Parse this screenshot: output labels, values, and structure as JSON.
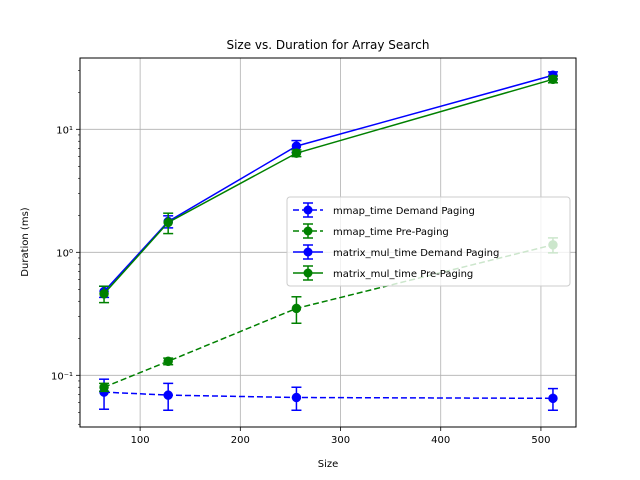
{
  "chart_data": {
    "type": "line",
    "title": "Size vs. Duration for Array Search",
    "xlabel": "Size",
    "ylabel": "Duration (ms)",
    "xscale": "linear",
    "yscale": "log",
    "xlim": [
      40,
      535
    ],
    "ylim": [
      0.038,
      38
    ],
    "xticks": [
      100,
      200,
      300,
      400,
      500
    ],
    "xtick_labels": [
      "100",
      "200",
      "300",
      "400",
      "500"
    ],
    "yticks": [
      0.1,
      1,
      10
    ],
    "ytick_labels": [
      "10⁻¹",
      "10⁰",
      "10¹"
    ],
    "grid": true,
    "legend_position": "center-right",
    "x": [
      64,
      128,
      256,
      512
    ],
    "series": [
      {
        "name": "mmap_time Demand Paging",
        "color": "#0000ff",
        "linestyle": "dashed",
        "values": [
          0.073,
          0.069,
          0.066,
          0.065
        ],
        "errors": [
          0.02,
          0.017,
          0.014,
          0.013
        ]
      },
      {
        "name": "mmap_time Pre-Paging",
        "color": "#008000",
        "linestyle": "dashed",
        "values": [
          0.08,
          0.13,
          0.35,
          1.15
        ],
        "errors": [
          0.006,
          0.008,
          0.085,
          0.16
        ]
      },
      {
        "name": "matrix_mul_time Demand Paging",
        "color": "#0000ff",
        "linestyle": "solid",
        "values": [
          0.48,
          1.78,
          7.3,
          27.5
        ],
        "errors": [
          0.05,
          0.2,
          0.8,
          1.8
        ]
      },
      {
        "name": "matrix_mul_time Pre-Paging",
        "color": "#008000",
        "linestyle": "solid",
        "values": [
          0.46,
          1.75,
          6.4,
          25.5
        ],
        "errors": [
          0.07,
          0.33,
          0.4,
          1.6
        ]
      }
    ]
  }
}
